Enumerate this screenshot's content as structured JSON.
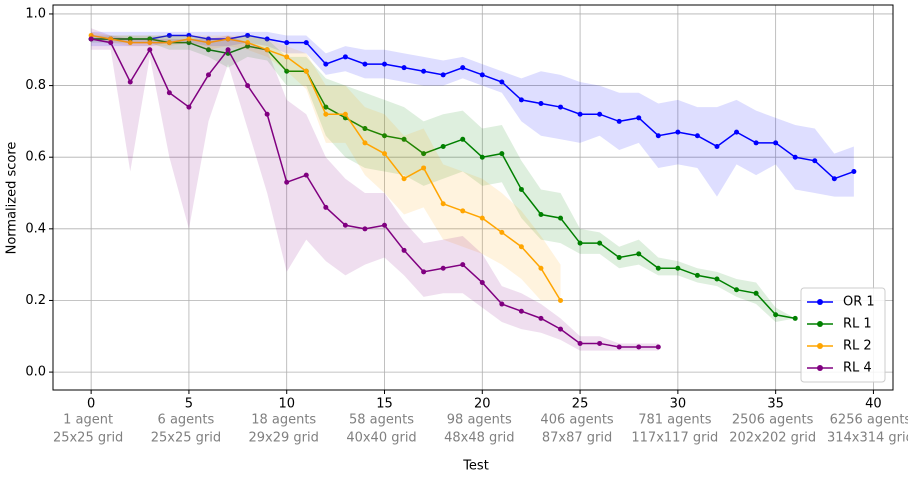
{
  "chart_data": {
    "type": "line",
    "xlabel": "Test",
    "ylabel": "Normalized score",
    "xlim": [
      -1.95,
      41.0
    ],
    "ylim": [
      -0.05,
      1.025
    ],
    "xticks": [
      0,
      5,
      10,
      15,
      20,
      25,
      30,
      35,
      40
    ],
    "yticks": [
      {
        "value": 0,
        "label": "0.0"
      },
      0.2,
      0.4,
      0.6,
      0.8,
      {
        "value": 1,
        "label": "1.0"
      }
    ],
    "grid": true,
    "legend": "lower right",
    "tick_annotations": [
      {
        "x": 0,
        "agents": "1 agent",
        "grid": "25x25 grid"
      },
      {
        "x": 5,
        "agents": "6 agents",
        "grid": "25x25 grid"
      },
      {
        "x": 10,
        "agents": "18 agents",
        "grid": "29x29 grid"
      },
      {
        "x": 15,
        "agents": "58 agents",
        "grid": "40x40 grid"
      },
      {
        "x": 20,
        "agents": "98 agents",
        "grid": "48x48 grid"
      },
      {
        "x": 25,
        "agents": "406 agents",
        "grid": "87x87 grid"
      },
      {
        "x": 30,
        "agents": "781 agents",
        "grid": "117x117 grid"
      },
      {
        "x": 35,
        "agents": "2506 agents",
        "grid": "202x202 grid"
      },
      {
        "x": 40,
        "agents": "6256 agents",
        "grid": "314x314 grid"
      }
    ],
    "series": [
      {
        "name": "OR 1",
        "color": "#0000ff",
        "x": [
          0,
          1,
          2,
          3,
          4,
          5,
          6,
          7,
          8,
          9,
          10,
          11,
          12,
          13,
          14,
          15,
          16,
          17,
          18,
          19,
          20,
          21,
          22,
          23,
          24,
          25,
          26,
          27,
          28,
          29,
          30,
          31,
          32,
          33,
          34,
          35,
          36,
          37,
          38,
          39
        ],
        "values": [
          0.93,
          0.93,
          0.93,
          0.93,
          0.94,
          0.94,
          0.93,
          0.93,
          0.94,
          0.93,
          0.92,
          0.92,
          0.86,
          0.88,
          0.86,
          0.86,
          0.85,
          0.84,
          0.83,
          0.85,
          0.83,
          0.81,
          0.76,
          0.75,
          0.74,
          0.72,
          0.72,
          0.7,
          0.71,
          0.66,
          0.67,
          0.66,
          0.63,
          0.67,
          0.64,
          0.64,
          0.6,
          0.59,
          0.54,
          0.56
        ],
        "lower": [
          0.91,
          0.91,
          0.91,
          0.91,
          0.92,
          0.92,
          0.91,
          0.91,
          0.92,
          0.91,
          0.89,
          0.89,
          0.83,
          0.84,
          0.82,
          0.82,
          0.81,
          0.8,
          0.8,
          0.82,
          0.8,
          0.78,
          0.7,
          0.66,
          0.65,
          0.64,
          0.66,
          0.62,
          0.64,
          0.57,
          0.58,
          0.57,
          0.49,
          0.58,
          0.55,
          0.58,
          0.51,
          0.5,
          0.49,
          0.49
        ],
        "upper": [
          0.95,
          0.95,
          0.95,
          0.95,
          0.95,
          0.95,
          0.95,
          0.95,
          0.95,
          0.95,
          0.94,
          0.94,
          0.89,
          0.91,
          0.9,
          0.9,
          0.89,
          0.88,
          0.87,
          0.88,
          0.86,
          0.84,
          0.82,
          0.84,
          0.83,
          0.81,
          0.8,
          0.78,
          0.78,
          0.75,
          0.76,
          0.74,
          0.74,
          0.76,
          0.73,
          0.71,
          0.69,
          0.68,
          0.61,
          0.63
        ]
      },
      {
        "name": "RL 1",
        "color": "#008000",
        "x": [
          0,
          1,
          2,
          3,
          4,
          5,
          6,
          7,
          8,
          9,
          10,
          11,
          12,
          13,
          14,
          15,
          16,
          17,
          18,
          19,
          20,
          21,
          22,
          23,
          24,
          25,
          26,
          27,
          28,
          29,
          30,
          31,
          32,
          33,
          34,
          35,
          36
        ],
        "values": [
          0.93,
          0.93,
          0.93,
          0.93,
          0.92,
          0.92,
          0.9,
          0.89,
          0.91,
          0.9,
          0.84,
          0.84,
          0.74,
          0.71,
          0.68,
          0.66,
          0.65,
          0.61,
          0.63,
          0.65,
          0.6,
          0.61,
          0.51,
          0.44,
          0.43,
          0.36,
          0.36,
          0.32,
          0.33,
          0.29,
          0.29,
          0.27,
          0.26,
          0.23,
          0.22,
          0.16,
          0.15
        ],
        "lower": [
          0.92,
          0.92,
          0.92,
          0.92,
          0.9,
          0.9,
          0.88,
          0.85,
          0.88,
          0.87,
          0.8,
          0.8,
          0.66,
          0.6,
          0.57,
          0.56,
          0.55,
          0.52,
          0.54,
          0.56,
          0.52,
          0.53,
          0.43,
          0.37,
          0.36,
          0.33,
          0.33,
          0.29,
          0.3,
          0.27,
          0.27,
          0.25,
          0.24,
          0.21,
          0.19,
          0.14,
          0.15
        ],
        "upper": [
          0.94,
          0.94,
          0.94,
          0.94,
          0.94,
          0.94,
          0.93,
          0.93,
          0.94,
          0.93,
          0.88,
          0.88,
          0.82,
          0.8,
          0.78,
          0.76,
          0.74,
          0.7,
          0.72,
          0.73,
          0.68,
          0.69,
          0.59,
          0.51,
          0.5,
          0.4,
          0.39,
          0.35,
          0.37,
          0.32,
          0.31,
          0.29,
          0.28,
          0.26,
          0.25,
          0.18,
          0.15
        ]
      },
      {
        "name": "RL 2",
        "color": "#ffa500",
        "x": [
          0,
          1,
          2,
          3,
          4,
          5,
          6,
          7,
          8,
          9,
          10,
          11,
          12,
          13,
          14,
          15,
          16,
          17,
          18,
          19,
          20,
          21,
          22,
          23,
          24
        ],
        "values": [
          0.94,
          0.93,
          0.92,
          0.92,
          0.92,
          0.93,
          0.92,
          0.93,
          0.92,
          0.9,
          0.88,
          0.84,
          0.72,
          0.72,
          0.64,
          0.61,
          0.54,
          0.57,
          0.47,
          0.45,
          0.43,
          0.39,
          0.35,
          0.29,
          0.2
        ],
        "lower": [
          0.93,
          0.92,
          0.91,
          0.91,
          0.91,
          0.92,
          0.9,
          0.91,
          0.9,
          0.88,
          0.84,
          0.79,
          0.64,
          0.64,
          0.55,
          0.5,
          0.44,
          0.46,
          0.37,
          0.35,
          0.33,
          0.3,
          0.26,
          0.2,
          0.2
        ],
        "upper": [
          0.95,
          0.94,
          0.94,
          0.94,
          0.94,
          0.94,
          0.94,
          0.94,
          0.94,
          0.93,
          0.91,
          0.89,
          0.8,
          0.8,
          0.74,
          0.72,
          0.66,
          0.68,
          0.58,
          0.56,
          0.54,
          0.5,
          0.45,
          0.38,
          0.3
        ]
      },
      {
        "name": "RL 4",
        "color": "#800080",
        "x": [
          0,
          1,
          2,
          3,
          4,
          5,
          6,
          7,
          8,
          9,
          10,
          11,
          12,
          13,
          14,
          15,
          16,
          17,
          18,
          19,
          20,
          21,
          22,
          23,
          24,
          25,
          26,
          27,
          28,
          29
        ],
        "values": [
          0.93,
          0.92,
          0.81,
          0.9,
          0.78,
          0.74,
          0.83,
          0.9,
          0.8,
          0.72,
          0.53,
          0.55,
          0.46,
          0.41,
          0.4,
          0.41,
          0.34,
          0.28,
          0.29,
          0.3,
          0.25,
          0.19,
          0.17,
          0.15,
          0.12,
          0.08,
          0.08,
          0.07,
          0.07,
          0.07
        ],
        "lower": [
          0.9,
          0.9,
          0.56,
          0.88,
          0.6,
          0.4,
          0.7,
          0.86,
          0.68,
          0.5,
          0.28,
          0.37,
          0.31,
          0.27,
          0.3,
          0.32,
          0.27,
          0.21,
          0.22,
          0.22,
          0.18,
          0.14,
          0.12,
          0.11,
          0.09,
          0.06,
          0.06,
          0.06,
          0.06,
          0.06
        ],
        "upper": [
          0.96,
          0.94,
          0.93,
          0.93,
          0.93,
          0.93,
          0.93,
          0.94,
          0.92,
          0.9,
          0.76,
          0.72,
          0.6,
          0.54,
          0.5,
          0.5,
          0.42,
          0.36,
          0.37,
          0.38,
          0.33,
          0.24,
          0.22,
          0.19,
          0.15,
          0.1,
          0.1,
          0.08,
          0.08,
          0.08
        ]
      }
    ]
  }
}
